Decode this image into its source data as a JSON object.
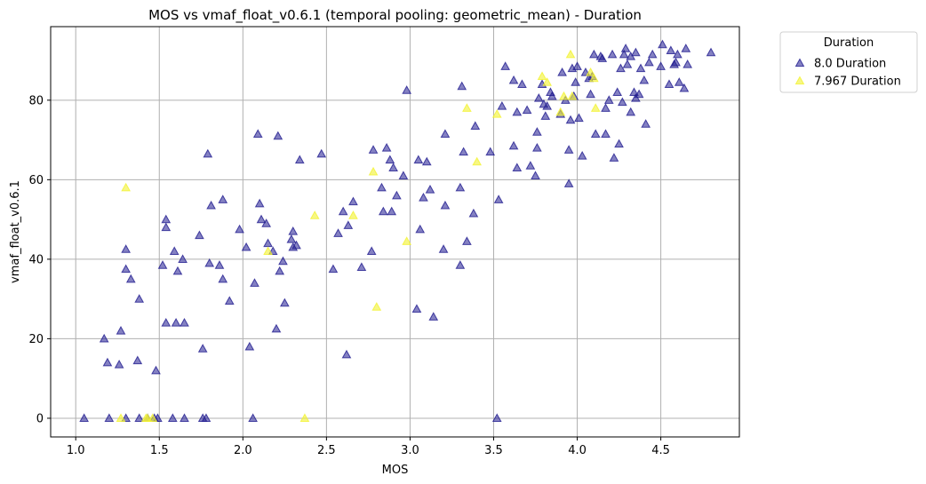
{
  "chart_data": {
    "type": "scatter",
    "title": "MOS vs vmaf_float_v0.6.1 (temporal pooling: geometric_mean) - Duration",
    "xlabel": "MOS",
    "ylabel": "vmaf_float_v0.6.1",
    "xlim": [
      0.85,
      4.97
    ],
    "ylim": [
      -4.7,
      98.5
    ],
    "xticks": [
      "1.0",
      "1.5",
      "2.0",
      "2.5",
      "3.0",
      "3.5",
      "4.0",
      "4.5"
    ],
    "xtick_values": [
      1.0,
      1.5,
      2.0,
      2.5,
      3.0,
      3.5,
      4.0,
      4.5
    ],
    "yticks": [
      "0",
      "20",
      "40",
      "60",
      "80"
    ],
    "ytick_values": [
      0,
      20,
      40,
      60,
      80
    ],
    "grid": true,
    "marker": "triangle",
    "legend": {
      "title": "Duration",
      "placement": "outside-top-right"
    },
    "series": [
      {
        "name": "8.0 Duration",
        "color": "#1f1a8f",
        "points": [
          [
            1.05,
            0
          ],
          [
            1.2,
            0
          ],
          [
            1.3,
            0
          ],
          [
            1.38,
            0
          ],
          [
            1.43,
            0
          ],
          [
            1.47,
            0
          ],
          [
            1.49,
            0
          ],
          [
            1.58,
            0
          ],
          [
            1.65,
            0
          ],
          [
            1.76,
            0
          ],
          [
            1.78,
            0
          ],
          [
            2.06,
            0
          ],
          [
            3.52,
            0
          ],
          [
            1.17,
            20
          ],
          [
            1.19,
            14
          ],
          [
            1.26,
            13.5
          ],
          [
            1.27,
            22
          ],
          [
            1.3,
            42.5
          ],
          [
            1.3,
            37.5
          ],
          [
            1.33,
            35
          ],
          [
            1.37,
            14.5
          ],
          [
            1.38,
            30
          ],
          [
            1.48,
            12
          ],
          [
            1.52,
            38.5
          ],
          [
            1.54,
            50
          ],
          [
            1.54,
            48
          ],
          [
            1.54,
            24
          ],
          [
            1.59,
            42
          ],
          [
            1.6,
            24
          ],
          [
            1.61,
            37
          ],
          [
            1.64,
            40
          ],
          [
            1.65,
            24
          ],
          [
            1.74,
            46
          ],
          [
            1.76,
            17.5
          ],
          [
            1.79,
            66.5
          ],
          [
            1.8,
            39
          ],
          [
            1.81,
            53.5
          ],
          [
            1.86,
            38.5
          ],
          [
            1.88,
            55
          ],
          [
            1.88,
            35
          ],
          [
            1.92,
            29.5
          ],
          [
            1.98,
            47.5
          ],
          [
            2.02,
            43
          ],
          [
            2.04,
            18
          ],
          [
            2.07,
            34
          ],
          [
            2.09,
            71.5
          ],
          [
            2.1,
            54
          ],
          [
            2.11,
            50
          ],
          [
            2.14,
            49
          ],
          [
            2.15,
            44
          ],
          [
            2.18,
            42
          ],
          [
            2.2,
            22.5
          ],
          [
            2.21,
            71
          ],
          [
            2.22,
            37
          ],
          [
            2.24,
            39.5
          ],
          [
            2.25,
            29
          ],
          [
            2.29,
            45
          ],
          [
            2.3,
            47
          ],
          [
            2.3,
            43
          ],
          [
            2.32,
            43.5
          ],
          [
            2.34,
            65
          ],
          [
            2.47,
            66.5
          ],
          [
            2.54,
            37.5
          ],
          [
            2.57,
            46.5
          ],
          [
            2.6,
            52
          ],
          [
            2.62,
            16
          ],
          [
            2.63,
            48.5
          ],
          [
            2.66,
            54.5
          ],
          [
            2.71,
            38
          ],
          [
            2.77,
            42
          ],
          [
            2.78,
            67.5
          ],
          [
            2.83,
            58
          ],
          [
            2.84,
            52
          ],
          [
            2.86,
            68
          ],
          [
            2.88,
            65
          ],
          [
            2.89,
            52
          ],
          [
            2.9,
            63
          ],
          [
            2.92,
            56
          ],
          [
            2.96,
            61
          ],
          [
            2.98,
            82.5
          ],
          [
            3.04,
            27.5
          ],
          [
            3.05,
            65
          ],
          [
            3.06,
            47.5
          ],
          [
            3.08,
            55.5
          ],
          [
            3.1,
            64.5
          ],
          [
            3.12,
            57.5
          ],
          [
            3.14,
            25.5
          ],
          [
            3.2,
            42.5
          ],
          [
            3.21,
            53.5
          ],
          [
            3.21,
            71.5
          ],
          [
            3.3,
            58
          ],
          [
            3.3,
            38.5
          ],
          [
            3.31,
            83.5
          ],
          [
            3.32,
            67
          ],
          [
            3.34,
            44.5
          ],
          [
            3.38,
            51.5
          ],
          [
            3.39,
            73.5
          ],
          [
            3.48,
            67
          ],
          [
            3.53,
            55
          ],
          [
            3.55,
            78.5
          ],
          [
            3.57,
            88.5
          ],
          [
            3.62,
            68.5
          ],
          [
            3.62,
            85
          ],
          [
            3.64,
            77
          ],
          [
            3.64,
            63
          ],
          [
            3.67,
            84
          ],
          [
            3.7,
            77.5
          ],
          [
            3.72,
            63.5
          ],
          [
            3.75,
            61
          ],
          [
            3.76,
            72
          ],
          [
            3.76,
            68
          ],
          [
            3.77,
            80.5
          ],
          [
            3.79,
            84
          ],
          [
            3.8,
            79
          ],
          [
            3.81,
            76
          ],
          [
            3.82,
            78.5
          ],
          [
            3.84,
            82
          ],
          [
            3.85,
            81
          ],
          [
            3.9,
            76.5
          ],
          [
            3.91,
            87
          ],
          [
            3.93,
            80
          ],
          [
            3.95,
            67.5
          ],
          [
            3.95,
            59
          ],
          [
            3.96,
            75
          ],
          [
            3.97,
            88
          ],
          [
            3.98,
            81
          ],
          [
            3.99,
            84.5
          ],
          [
            4,
            88.5
          ],
          [
            4.01,
            75.5
          ],
          [
            4.03,
            66
          ],
          [
            4.05,
            87
          ],
          [
            4.07,
            85.5
          ],
          [
            4.08,
            81.5
          ],
          [
            4.09,
            86
          ],
          [
            4.1,
            91.5
          ],
          [
            4.11,
            71.5
          ],
          [
            4.14,
            91
          ],
          [
            4.15,
            90.5
          ],
          [
            4.17,
            71.5
          ],
          [
            4.17,
            78
          ],
          [
            4.19,
            80
          ],
          [
            4.21,
            91.5
          ],
          [
            4.22,
            65.5
          ],
          [
            4.24,
            82
          ],
          [
            4.25,
            69
          ],
          [
            4.26,
            88
          ],
          [
            4.27,
            79.5
          ],
          [
            4.28,
            91.5
          ],
          [
            4.29,
            93
          ],
          [
            4.3,
            89
          ],
          [
            4.32,
            77
          ],
          [
            4.32,
            91
          ],
          [
            4.34,
            82
          ],
          [
            4.35,
            80.5
          ],
          [
            4.35,
            92
          ],
          [
            4.37,
            81.5
          ],
          [
            4.38,
            88
          ],
          [
            4.4,
            85
          ],
          [
            4.41,
            74
          ],
          [
            4.43,
            89.5
          ],
          [
            4.45,
            91.5
          ],
          [
            4.5,
            88.5
          ],
          [
            4.51,
            94
          ],
          [
            4.55,
            84
          ],
          [
            4.56,
            92.5
          ],
          [
            4.58,
            89
          ],
          [
            4.59,
            89.5
          ],
          [
            4.6,
            91.5
          ],
          [
            4.61,
            84.5
          ],
          [
            4.64,
            83
          ],
          [
            4.65,
            93
          ],
          [
            4.66,
            89
          ],
          [
            4.8,
            92
          ]
        ]
      },
      {
        "name": "7.967 Duration",
        "color": "#f2f230",
        "points": [
          [
            1.27,
            0
          ],
          [
            1.3,
            58
          ],
          [
            1.42,
            0
          ],
          [
            1.43,
            0
          ],
          [
            1.46,
            0
          ],
          [
            2.15,
            42
          ],
          [
            2.37,
            0
          ],
          [
            2.43,
            51
          ],
          [
            2.66,
            51
          ],
          [
            2.78,
            62
          ],
          [
            2.8,
            28
          ],
          [
            2.98,
            44.5
          ],
          [
            3.34,
            78
          ],
          [
            3.4,
            64.5
          ],
          [
            3.52,
            76.5
          ],
          [
            3.79,
            86
          ],
          [
            3.82,
            84.5
          ],
          [
            3.9,
            77
          ],
          [
            3.92,
            81
          ],
          [
            3.96,
            91.5
          ],
          [
            3.97,
            81
          ],
          [
            4.08,
            87
          ],
          [
            4.1,
            85.5
          ],
          [
            4.11,
            78
          ]
        ]
      }
    ]
  }
}
